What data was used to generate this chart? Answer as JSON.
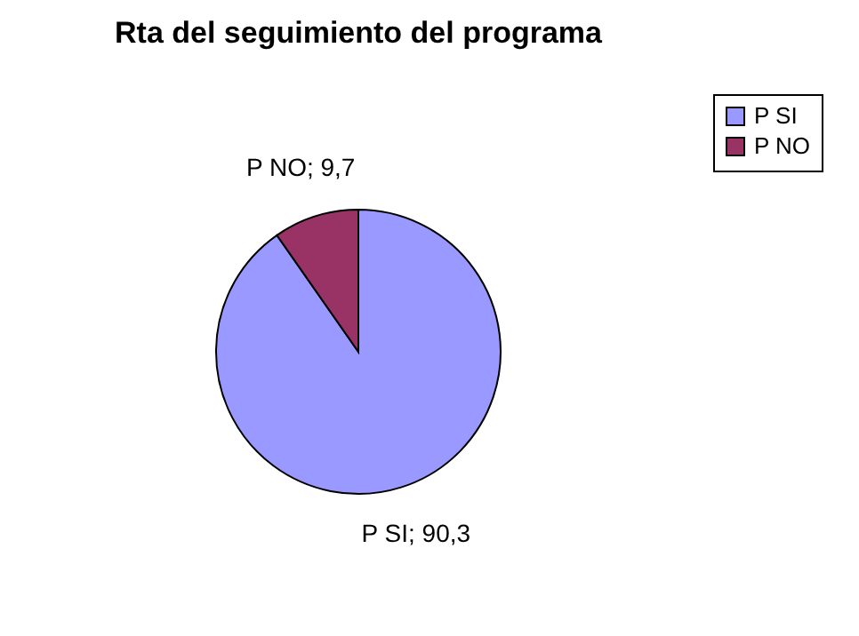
{
  "chart_data": {
    "type": "pie",
    "title": "Rta del seguimiento del programa",
    "categories": [
      "P SI",
      "P NO"
    ],
    "values": [
      90.3,
      9.7
    ],
    "colors": [
      "#9999ff",
      "#993366"
    ],
    "value_labels": [
      "P SI; 90,3",
      "P NO; 9,7"
    ],
    "legend": "right"
  }
}
